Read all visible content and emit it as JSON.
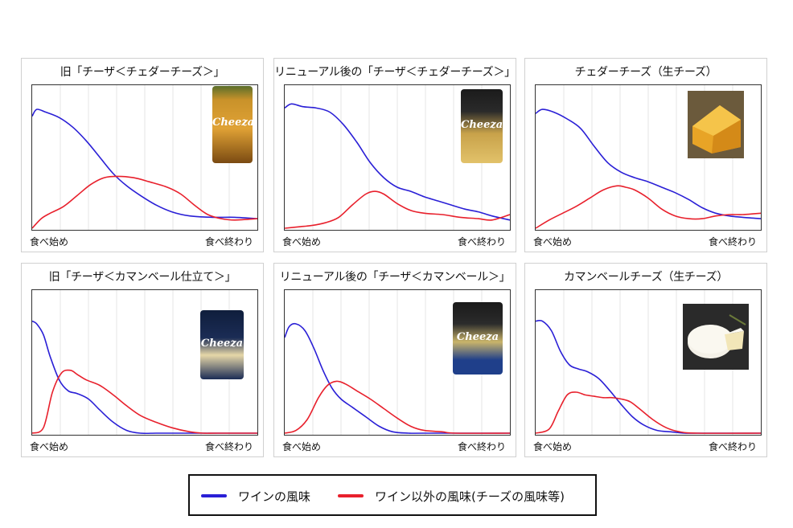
{
  "colors": {
    "wine": "#2a1fd6",
    "other": "#e8202c",
    "grid": "#e4e4e4"
  },
  "legend": {
    "wine_label": "ワインの風味",
    "other_label": "ワイン以外の風味(チーズの風味等)"
  },
  "chart_data": [
    {
      "type": "line",
      "title": "旧「チーザ＜チェダーチーズ＞」",
      "x_start_label": "食べ始め",
      "x_end_label": "食べ終わり",
      "xlim": [
        0,
        1
      ],
      "ylim": [
        0,
        1
      ],
      "grid": "vertical",
      "image": "product-package-icon",
      "series": [
        {
          "key": "wine",
          "x": [
            0,
            0.02,
            0.06,
            0.12,
            0.18,
            0.24,
            0.3,
            0.36,
            0.42,
            0.48,
            0.55,
            0.62,
            0.7,
            0.8,
            0.9,
            1.0
          ],
          "y": [
            0.82,
            0.87,
            0.85,
            0.81,
            0.74,
            0.64,
            0.52,
            0.4,
            0.31,
            0.24,
            0.17,
            0.12,
            0.09,
            0.08,
            0.08,
            0.07
          ]
        },
        {
          "key": "other",
          "x": [
            0,
            0.04,
            0.08,
            0.14,
            0.2,
            0.26,
            0.32,
            0.38,
            0.45,
            0.52,
            0.6,
            0.66,
            0.72,
            0.78,
            0.84,
            0.9,
            1.0
          ],
          "y": [
            0.0,
            0.07,
            0.11,
            0.16,
            0.24,
            0.32,
            0.37,
            0.38,
            0.37,
            0.34,
            0.3,
            0.25,
            0.17,
            0.1,
            0.07,
            0.06,
            0.07
          ]
        }
      ]
    },
    {
      "type": "line",
      "title": "リニューアル後の「チーザ＜チェダーチーズ＞」",
      "x_start_label": "食べ始め",
      "x_end_label": "食べ終わり",
      "xlim": [
        0,
        1
      ],
      "ylim": [
        0,
        1
      ],
      "grid": "vertical",
      "image": "product-package-icon",
      "series": [
        {
          "key": "wine",
          "x": [
            0,
            0.03,
            0.08,
            0.14,
            0.2,
            0.26,
            0.32,
            0.38,
            0.44,
            0.5,
            0.56,
            0.62,
            0.68,
            0.74,
            0.8,
            0.86,
            0.92,
            1.0
          ],
          "y": [
            0.88,
            0.91,
            0.89,
            0.88,
            0.85,
            0.76,
            0.63,
            0.48,
            0.37,
            0.3,
            0.27,
            0.23,
            0.2,
            0.17,
            0.14,
            0.12,
            0.09,
            0.06
          ]
        },
        {
          "key": "other",
          "x": [
            0,
            0.06,
            0.12,
            0.18,
            0.24,
            0.3,
            0.36,
            0.4,
            0.44,
            0.5,
            0.56,
            0.62,
            0.7,
            0.78,
            0.86,
            0.92,
            1.0
          ],
          "y": [
            0.0,
            0.01,
            0.02,
            0.04,
            0.08,
            0.17,
            0.25,
            0.27,
            0.25,
            0.18,
            0.13,
            0.11,
            0.1,
            0.08,
            0.07,
            0.06,
            0.1
          ]
        }
      ]
    },
    {
      "type": "line",
      "title": "チェダーチーズ（生チーズ）",
      "x_start_label": "食べ始め",
      "x_end_label": "食べ終わり",
      "xlim": [
        0,
        1
      ],
      "ylim": [
        0,
        1
      ],
      "grid": "vertical",
      "image": "cheese-photo-icon",
      "series": [
        {
          "key": "wine",
          "x": [
            0,
            0.03,
            0.08,
            0.14,
            0.2,
            0.26,
            0.32,
            0.38,
            0.44,
            0.5,
            0.56,
            0.62,
            0.68,
            0.74,
            0.8,
            0.86,
            0.92,
            1.0
          ],
          "y": [
            0.84,
            0.87,
            0.85,
            0.8,
            0.73,
            0.6,
            0.48,
            0.41,
            0.37,
            0.34,
            0.3,
            0.26,
            0.21,
            0.15,
            0.11,
            0.09,
            0.08,
            0.07
          ]
        },
        {
          "key": "other",
          "x": [
            0,
            0.06,
            0.12,
            0.18,
            0.24,
            0.3,
            0.36,
            0.4,
            0.44,
            0.5,
            0.56,
            0.62,
            0.68,
            0.74,
            0.8,
            0.86,
            0.92,
            1.0
          ],
          "y": [
            0.0,
            0.06,
            0.11,
            0.16,
            0.22,
            0.28,
            0.31,
            0.3,
            0.28,
            0.22,
            0.14,
            0.09,
            0.07,
            0.07,
            0.09,
            0.1,
            0.1,
            0.11
          ]
        }
      ]
    },
    {
      "type": "line",
      "title": "旧「チーザ＜カマンベール仕立て＞」",
      "x_start_label": "食べ始め",
      "x_end_label": "食べ終わり",
      "xlim": [
        0,
        1
      ],
      "ylim": [
        0,
        1
      ],
      "grid": "vertical",
      "image": "product-package-icon",
      "series": [
        {
          "key": "wine",
          "x": [
            0,
            0.02,
            0.05,
            0.08,
            0.12,
            0.16,
            0.2,
            0.25,
            0.3,
            0.36,
            0.42,
            0.48,
            0.55,
            0.62,
            1.0
          ],
          "y": [
            0.82,
            0.8,
            0.72,
            0.56,
            0.39,
            0.31,
            0.29,
            0.25,
            0.17,
            0.08,
            0.02,
            0.0,
            0.0,
            0.0,
            0.0
          ]
        },
        {
          "key": "other",
          "x": [
            0,
            0.05,
            0.09,
            0.13,
            0.17,
            0.2,
            0.24,
            0.3,
            0.36,
            0.42,
            0.48,
            0.55,
            0.62,
            0.7,
            0.76,
            0.82,
            1.0
          ],
          "y": [
            0.0,
            0.04,
            0.3,
            0.44,
            0.46,
            0.43,
            0.39,
            0.35,
            0.28,
            0.2,
            0.13,
            0.08,
            0.04,
            0.01,
            0.0,
            0.0,
            0.0
          ]
        }
      ]
    },
    {
      "type": "line",
      "title": "リニューアル後の「チーザ＜カマンベール＞」",
      "x_start_label": "食べ始め",
      "x_end_label": "食べ終わり",
      "xlim": [
        0,
        1
      ],
      "ylim": [
        0,
        1
      ],
      "grid": "vertical",
      "image": "product-package-icon",
      "series": [
        {
          "key": "wine",
          "x": [
            0,
            0.02,
            0.05,
            0.09,
            0.13,
            0.17,
            0.21,
            0.25,
            0.3,
            0.36,
            0.42,
            0.48,
            0.55,
            0.62,
            1.0
          ],
          "y": [
            0.7,
            0.78,
            0.8,
            0.75,
            0.62,
            0.46,
            0.33,
            0.25,
            0.19,
            0.12,
            0.05,
            0.01,
            0.0,
            0.0,
            0.0
          ]
        },
        {
          "key": "other",
          "x": [
            0,
            0.05,
            0.1,
            0.15,
            0.19,
            0.23,
            0.27,
            0.32,
            0.38,
            0.44,
            0.5,
            0.56,
            0.62,
            0.7,
            0.76,
            1.0
          ],
          "y": [
            0.0,
            0.02,
            0.1,
            0.26,
            0.35,
            0.38,
            0.36,
            0.31,
            0.25,
            0.18,
            0.11,
            0.05,
            0.02,
            0.01,
            0.0,
            0.0
          ]
        }
      ]
    },
    {
      "type": "line",
      "title": "カマンベールチーズ（生チーズ）",
      "x_start_label": "食べ始め",
      "x_end_label": "食べ終わり",
      "xlim": [
        0,
        1
      ],
      "ylim": [
        0,
        1
      ],
      "grid": "vertical",
      "image": "cheese-photo-icon",
      "series": [
        {
          "key": "wine",
          "x": [
            0,
            0.03,
            0.07,
            0.11,
            0.15,
            0.19,
            0.23,
            0.28,
            0.33,
            0.38,
            0.43,
            0.48,
            0.54,
            0.6,
            0.66,
            0.72,
            1.0
          ],
          "y": [
            0.82,
            0.82,
            0.75,
            0.6,
            0.5,
            0.47,
            0.45,
            0.4,
            0.31,
            0.21,
            0.12,
            0.06,
            0.02,
            0.01,
            0.0,
            0.0,
            0.0
          ]
        },
        {
          "key": "other",
          "x": [
            0,
            0.06,
            0.1,
            0.14,
            0.18,
            0.22,
            0.26,
            0.3,
            0.34,
            0.38,
            0.42,
            0.46,
            0.52,
            0.58,
            0.64,
            0.72,
            1.0
          ],
          "y": [
            0.0,
            0.03,
            0.16,
            0.28,
            0.3,
            0.28,
            0.27,
            0.26,
            0.26,
            0.25,
            0.23,
            0.18,
            0.1,
            0.04,
            0.01,
            0.0,
            0.0
          ]
        }
      ]
    }
  ]
}
